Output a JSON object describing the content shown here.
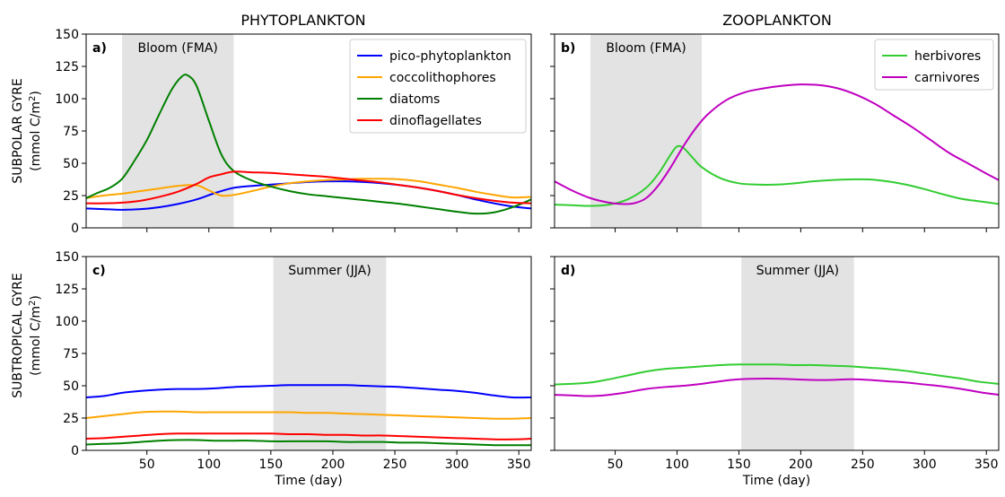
{
  "figure": {
    "column_titles": [
      "PHYTOPLANKTON",
      "ZOOPLANKTON"
    ],
    "row_labels": [
      {
        "line1": "SUBPOLAR GYRE",
        "line2": "(mmol C/m",
        "sup": "2",
        "end": ")"
      },
      {
        "line1": "SUBTROPICAL GYRE",
        "line2": "(mmol C/m",
        "sup": "2",
        "end": ")"
      }
    ]
  },
  "colors": {
    "pico": "#0000ff",
    "cocco": "#ffa500",
    "diatoms": "#008000",
    "dino": "#ff0000",
    "herbivores": "#32cd32",
    "carnivores": "#c000c0",
    "shade": "#e3e3e3"
  },
  "chart_data": [
    {
      "id": "a",
      "type": "line",
      "label": "a)",
      "row": 0,
      "col": 0,
      "xlabel": "",
      "ylabel": "SUBPOLAR GYRE (mmol C/m2)",
      "xlim": [
        1,
        360
      ],
      "ylim": [
        0,
        150
      ],
      "xticks": [
        50,
        100,
        150,
        200,
        250,
        300,
        350
      ],
      "show_xticklabels": false,
      "yticks": [
        0,
        25,
        50,
        75,
        100,
        125,
        150
      ],
      "show_yticklabels": true,
      "shade": {
        "from": 30,
        "to": 120,
        "label": "Bloom (FMA)"
      },
      "legend": "top-right",
      "series": [
        {
          "name": "pico-phytoplankton",
          "color_key": "pico",
          "x": [
            1,
            15,
            30,
            45,
            60,
            75,
            90,
            105,
            120,
            135,
            150,
            165,
            180,
            195,
            210,
            225,
            240,
            255,
            270,
            285,
            300,
            315,
            330,
            345,
            360
          ],
          "y": [
            15,
            14.5,
            14,
            14.5,
            16,
            18.5,
            22,
            27,
            31,
            32.5,
            33.5,
            34.5,
            35.5,
            36,
            36,
            35.5,
            34.5,
            33,
            31,
            28.5,
            25.5,
            22,
            19,
            16.5,
            15
          ]
        },
        {
          "name": "coccolithophores",
          "color_key": "cocco",
          "x": [
            1,
            15,
            30,
            45,
            60,
            75,
            90,
            100,
            110,
            120,
            135,
            150,
            165,
            180,
            195,
            210,
            225,
            240,
            255,
            270,
            285,
            300,
            315,
            330,
            345,
            360
          ],
          "y": [
            23,
            25,
            26.5,
            28.5,
            30.5,
            32.5,
            33,
            29,
            25,
            25.5,
            28.5,
            32,
            34.5,
            36,
            37,
            37.5,
            38,
            38,
            37.5,
            36,
            33.5,
            31,
            28,
            25.5,
            23.5,
            24
          ]
        },
        {
          "name": "diatoms",
          "color_key": "diatoms",
          "x": [
            1,
            10,
            20,
            30,
            40,
            50,
            60,
            70,
            78,
            83,
            90,
            100,
            110,
            120,
            135,
            150,
            165,
            180,
            195,
            210,
            225,
            240,
            255,
            270,
            285,
            300,
            315,
            330,
            345,
            360
          ],
          "y": [
            23,
            27,
            31,
            38,
            52,
            68,
            88,
            107,
            117,
            118,
            110,
            83,
            57,
            44,
            36.5,
            32,
            28.5,
            26,
            24.5,
            23,
            21.5,
            20,
            18.5,
            16.5,
            14.5,
            12.5,
            11,
            12,
            16,
            22
          ]
        },
        {
          "name": "dinoflagellates",
          "color_key": "dino",
          "x": [
            1,
            15,
            30,
            45,
            60,
            75,
            90,
            100,
            110,
            120,
            135,
            150,
            165,
            180,
            195,
            210,
            225,
            240,
            255,
            270,
            285,
            300,
            315,
            330,
            345,
            360
          ],
          "y": [
            19,
            19,
            19.5,
            21,
            24,
            28,
            34,
            39,
            41.5,
            43.5,
            43,
            42.5,
            41.5,
            40.5,
            39.5,
            38,
            36.5,
            35,
            33,
            31,
            28.5,
            25.5,
            23,
            21,
            19.5,
            19
          ]
        }
      ]
    },
    {
      "id": "b",
      "type": "line",
      "label": "b)",
      "row": 0,
      "col": 1,
      "xlabel": "",
      "ylabel": "",
      "xlim": [
        1,
        360
      ],
      "ylim": [
        0,
        150
      ],
      "xticks": [
        50,
        100,
        150,
        200,
        250,
        300,
        350
      ],
      "show_xticklabels": false,
      "yticks": [
        0,
        25,
        50,
        75,
        100,
        125,
        150
      ],
      "show_yticklabels": false,
      "shade": {
        "from": 30,
        "to": 120,
        "label": "Bloom (FMA)"
      },
      "legend": "top-right",
      "series": [
        {
          "name": "herbivores",
          "color_key": "herbivores",
          "x": [
            1,
            15,
            30,
            45,
            60,
            75,
            85,
            95,
            100,
            105,
            112,
            120,
            135,
            150,
            165,
            180,
            195,
            210,
            225,
            240,
            255,
            270,
            285,
            300,
            315,
            330,
            345,
            360
          ],
          "y": [
            18,
            17.5,
            17,
            18,
            22,
            31,
            42,
            57,
            63,
            62,
            55,
            47,
            38.5,
            34.5,
            33.5,
            33.5,
            34.5,
            36,
            37,
            37.5,
            37.5,
            36,
            33.5,
            30,
            26,
            22.5,
            20.5,
            18.5
          ]
        },
        {
          "name": "carnivores",
          "color_key": "carnivores",
          "x": [
            1,
            15,
            30,
            45,
            55,
            65,
            75,
            85,
            95,
            105,
            115,
            125,
            140,
            155,
            170,
            185,
            200,
            215,
            230,
            245,
            260,
            275,
            290,
            305,
            320,
            335,
            350,
            360
          ],
          "y": [
            36,
            29,
            23,
            19.5,
            18.5,
            19,
            23,
            33,
            47,
            63,
            77,
            88,
            99,
            105,
            108,
            110,
            111,
            110.5,
            108,
            103,
            96,
            87,
            78,
            68,
            58,
            50,
            42,
            37
          ]
        }
      ]
    },
    {
      "id": "c",
      "type": "line",
      "label": "c)",
      "row": 1,
      "col": 0,
      "xlabel": "Time (day)",
      "ylabel": "SUBTROPICAL GYRE (mmol C/m2)",
      "xlim": [
        1,
        360
      ],
      "ylim": [
        0,
        150
      ],
      "xticks": [
        50,
        100,
        150,
        200,
        250,
        300,
        350
      ],
      "show_xticklabels": true,
      "yticks": [
        0,
        25,
        50,
        75,
        100,
        125,
        150
      ],
      "show_yticklabels": true,
      "shade": {
        "from": 152,
        "to": 243,
        "label": "Summer (JJA)"
      },
      "series": [
        {
          "name": "pico-phytoplankton",
          "color_key": "pico",
          "x": [
            1,
            15,
            30,
            45,
            60,
            75,
            90,
            105,
            120,
            135,
            150,
            165,
            180,
            195,
            210,
            225,
            240,
            255,
            270,
            285,
            300,
            315,
            330,
            345,
            360
          ],
          "y": [
            41,
            42,
            44.5,
            46,
            47,
            47.5,
            47.5,
            48,
            49,
            49.5,
            50,
            50.5,
            50.5,
            50.5,
            50.5,
            50,
            49.5,
            49,
            48,
            47,
            46,
            44.5,
            42.5,
            41,
            41
          ]
        },
        {
          "name": "coccolithophores",
          "color_key": "cocco",
          "x": [
            1,
            15,
            30,
            45,
            60,
            75,
            90,
            105,
            120,
            135,
            150,
            165,
            180,
            195,
            210,
            225,
            240,
            255,
            270,
            285,
            300,
            315,
            330,
            345,
            360
          ],
          "y": [
            25,
            26.5,
            28,
            29.5,
            30,
            30,
            29.5,
            29.5,
            29.5,
            29.5,
            29.5,
            29.5,
            29,
            29,
            28.5,
            28,
            27.5,
            27,
            26.5,
            26,
            25.5,
            25,
            24.5,
            24.5,
            25
          ]
        },
        {
          "name": "dinoflagellates",
          "color_key": "dino",
          "x": [
            1,
            15,
            30,
            45,
            60,
            75,
            90,
            105,
            120,
            135,
            150,
            165,
            180,
            195,
            210,
            225,
            240,
            255,
            270,
            285,
            300,
            315,
            330,
            345,
            360
          ],
          "y": [
            9,
            9.5,
            10.5,
            11.5,
            12.5,
            13,
            13,
            13,
            13,
            13,
            13,
            12.5,
            12.5,
            12,
            12,
            11.5,
            11.5,
            11,
            10.5,
            10,
            9.5,
            9,
            8.5,
            8.5,
            9
          ]
        },
        {
          "name": "diatoms",
          "color_key": "diatoms",
          "x": [
            1,
            15,
            30,
            45,
            60,
            75,
            90,
            105,
            120,
            135,
            150,
            165,
            180,
            195,
            210,
            225,
            240,
            255,
            270,
            285,
            300,
            315,
            330,
            345,
            360
          ],
          "y": [
            4.5,
            5,
            5.5,
            6.5,
            7.5,
            8,
            8,
            7.5,
            7.5,
            7.5,
            7,
            7,
            7,
            7,
            6.5,
            6.5,
            6.5,
            6,
            6,
            5.5,
            5,
            4.5,
            4,
            4,
            4
          ]
        }
      ]
    },
    {
      "id": "d",
      "type": "line",
      "label": "d)",
      "row": 1,
      "col": 1,
      "xlabel": "Time (day)",
      "ylabel": "",
      "xlim": [
        1,
        360
      ],
      "ylim": [
        0,
        150
      ],
      "xticks": [
        50,
        100,
        150,
        200,
        250,
        300,
        350
      ],
      "show_xticklabels": true,
      "yticks": [
        0,
        25,
        50,
        75,
        100,
        125,
        150
      ],
      "show_yticklabels": false,
      "shade": {
        "from": 152,
        "to": 243,
        "label": "Summer (JJA)"
      },
      "series": [
        {
          "name": "herbivores",
          "color_key": "herbivores",
          "x": [
            1,
            15,
            30,
            45,
            60,
            75,
            90,
            105,
            120,
            135,
            150,
            165,
            180,
            195,
            210,
            225,
            240,
            255,
            270,
            285,
            300,
            315,
            330,
            345,
            360
          ],
          "y": [
            51,
            51.5,
            52.5,
            55,
            58,
            61,
            63,
            64,
            65,
            66,
            66.5,
            66.5,
            66.5,
            66,
            66,
            65.5,
            65,
            64,
            63,
            61.5,
            59.5,
            57.5,
            55.5,
            53,
            51.5
          ]
        },
        {
          "name": "carnivores",
          "color_key": "carnivores",
          "x": [
            1,
            15,
            30,
            45,
            60,
            75,
            90,
            105,
            120,
            135,
            150,
            165,
            180,
            195,
            210,
            225,
            240,
            255,
            270,
            285,
            300,
            315,
            330,
            345,
            360
          ],
          "y": [
            43,
            42.5,
            42,
            43,
            45,
            47.5,
            49,
            50,
            51.5,
            53.5,
            55,
            55.5,
            55.5,
            55,
            54.5,
            54.5,
            55,
            54.5,
            53.5,
            52.5,
            51,
            49.5,
            47.5,
            45,
            43
          ]
        }
      ]
    }
  ]
}
